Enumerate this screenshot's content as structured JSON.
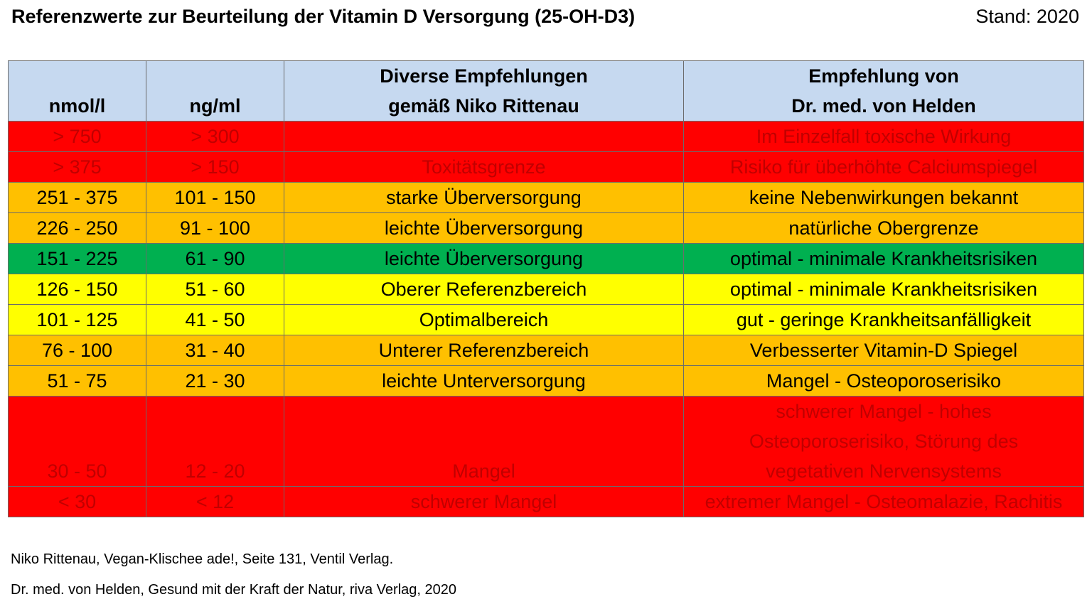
{
  "title": "Referenzwerte zur Beurteilung der Vitamin D Versorgung (25-OH-D3)",
  "stand": "Stand: 2020",
  "colors": {
    "header": "#c6d9f0",
    "red": "#ff0000",
    "orange": "#ffc000",
    "green": "#00b050",
    "yellow": "#ffff00",
    "red_text": "#c00000"
  },
  "table": {
    "headers": {
      "nmol": "nmol/l",
      "ngml": "ng/ml",
      "rittenau_line1": "Diverse Empfehlungen",
      "rittenau_line2": "gemäß Niko Rittenau",
      "helden_line1": "Empfehlung von",
      "helden_line2": "Dr. med. von Helden"
    },
    "rows": [
      {
        "nmol": "> 750",
        "ngml": "> 300",
        "rittenau": "",
        "helden": "Im Einzelfall toxische Wirkung",
        "color": "red"
      },
      {
        "nmol": "> 375",
        "ngml": "> 150",
        "rittenau": "Toxitätsgrenze",
        "helden": "Risiko für überhöhte Calciumspiegel",
        "color": "red"
      },
      {
        "nmol": "251 - 375",
        "ngml": "101 - 150",
        "rittenau": "starke Überversorgung",
        "helden": "keine Nebenwirkungen bekannt",
        "color": "orange"
      },
      {
        "nmol": "226 - 250",
        "ngml": "91 - 100",
        "rittenau": "leichte Überversorgung",
        "helden": "natürliche Obergrenze",
        "color": "orange"
      },
      {
        "nmol": "151 - 225",
        "ngml": "61 - 90",
        "rittenau": "leichte Überversorgung",
        "helden": "optimal  - minimale Krankheitsrisiken",
        "color": "green"
      },
      {
        "nmol": "126 - 150",
        "ngml": "51 - 60",
        "rittenau": "Oberer Referenzbereich",
        "helden": "optimal  - minimale Krankheitsrisiken",
        "color": "yellow"
      },
      {
        "nmol": "101 - 125",
        "ngml": "41 - 50",
        "rittenau": "Optimalbereich",
        "helden": "gut - geringe Krankheitsanfälligkeit",
        "color": "yellow"
      },
      {
        "nmol": "76 - 100",
        "ngml": "31 - 40",
        "rittenau": "Unterer Referenzbereich",
        "helden": "Verbesserter Vitamin-D Spiegel",
        "color": "orange"
      },
      {
        "nmol": "51 - 75",
        "ngml": "21 - 30",
        "rittenau": "leichte Unterversorgung",
        "helden": "Mangel - Osteoporoserisiko",
        "color": "orange"
      },
      {
        "nmol": "30 - 50",
        "ngml": "12 - 20",
        "rittenau": "Mangel",
        "helden_lines": [
          "schwerer Mangel - hohes",
          "Osteoporoserisiko, Störung des",
          "vegetativen Nervensystems"
        ],
        "color": "red"
      },
      {
        "nmol": "< 30",
        "ngml": "< 12",
        "rittenau": "schwerer Mangel",
        "helden": "extremer Mangel - Osteomalazie, Rachitis",
        "color": "red"
      }
    ]
  },
  "footer": {
    "source1": "Niko Rittenau, Vegan-Klischee ade!, Seite 131, Ventil Verlag.",
    "source2": "Dr. med. von Helden, Gesund mit der Kraft der Natur, riva Verlag, 2020"
  }
}
